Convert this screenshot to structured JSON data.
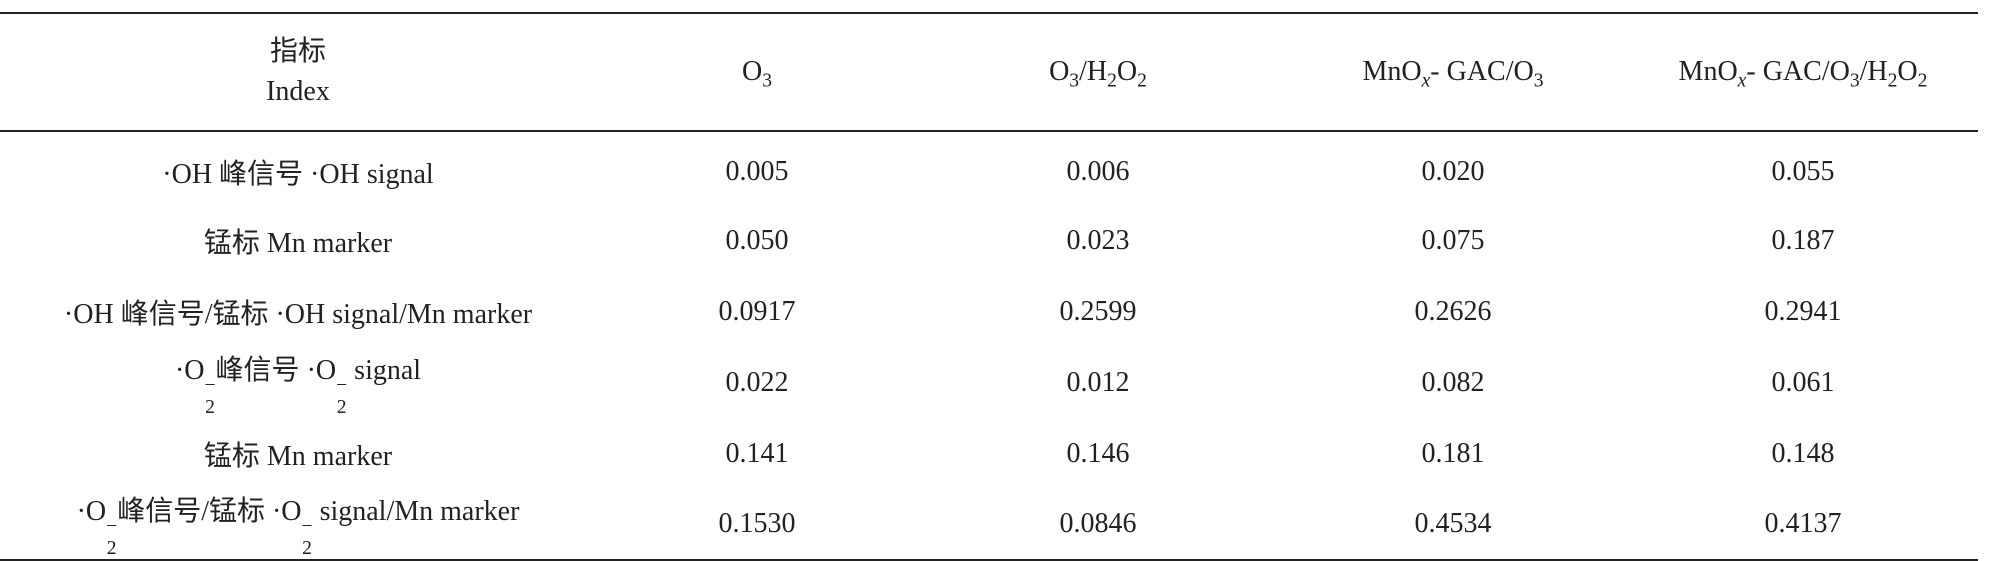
{
  "table": {
    "header": {
      "index_cn": "指标",
      "index_en": "Index",
      "col1": {
        "base": "O",
        "sub": "3"
      },
      "col2": {
        "a": "O",
        "a_sub": "3",
        "sep": "/H",
        "b_sub": "2",
        "c": "O",
        "c_sub": "2"
      },
      "col3": {
        "pre": "MnO",
        "x": "x",
        "post": "- GAC/O",
        "post_sub": "3"
      },
      "col4": {
        "pre": "MnO",
        "x": "x",
        "mid": "- GAC/O",
        "mid_sub": "3",
        "sep": "/H",
        "h_sub": "2",
        "o": "O",
        "o_sub": "2"
      }
    },
    "rows": [
      {
        "label": "·OH 峰信号 ·OH signal",
        "values": [
          "0.005",
          "0.006",
          "0.020",
          "0.055"
        ]
      },
      {
        "label": "锰标 Mn marker",
        "values": [
          "0.050",
          "0.023",
          "0.075",
          "0.187"
        ]
      },
      {
        "label": "·OH 峰信号/锰标 ·OH signal/Mn marker",
        "values": [
          "0.0917",
          "0.2599",
          "0.2626",
          "0.2941"
        ]
      },
      {
        "label_parts": {
          "dot": "·O",
          "sub": "2",
          "sup": "−",
          "cn": "峰信号",
          "dot2": "·O",
          "sub2": "2",
          "sup2": "−",
          "en": "signal"
        },
        "values": [
          "0.022",
          "0.012",
          "0.082",
          "0.061"
        ]
      },
      {
        "label": "锰标 Mn marker",
        "values": [
          "0.141",
          "0.146",
          "0.181",
          "0.148"
        ]
      },
      {
        "label_parts": {
          "dot": "·O",
          "sub": "2",
          "sup": "−",
          "cn": "峰信号/锰标",
          "dot2": "·O",
          "sub2": "2",
          "sup2": "−",
          "en": "signal/Mn marker"
        },
        "values": [
          "0.1530",
          "0.0846",
          "0.4534",
          "0.4137"
        ]
      }
    ]
  }
}
